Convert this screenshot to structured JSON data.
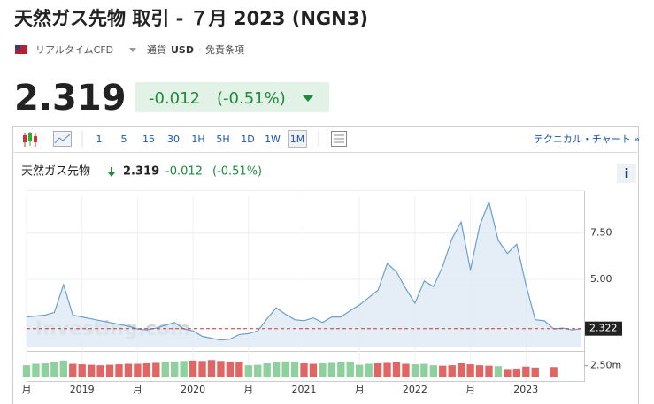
{
  "header": {
    "title": "天然ガス先物 取引 - ７月 2023 (NGN3)",
    "source": "リアルタイムCFD",
    "currency_label": "通貨",
    "currency": "USD",
    "disclaimer": "免責条項",
    "price": "2.319",
    "change": "-0.012",
    "change_pct": "(-0.51%)"
  },
  "toolbar": {
    "intervals": [
      "1",
      "5",
      "15",
      "30",
      "1H",
      "5H",
      "1D",
      "1W",
      "1M"
    ],
    "link": "テクニカル・チャート »"
  },
  "chart_header": {
    "name": "天然ガス先物",
    "price": "2.319",
    "change": "-0.012",
    "change_pct": "(-0.51%)",
    "info": "i"
  },
  "chart_data": {
    "type": "line",
    "watermark": "Investing.com",
    "categories": [
      "月",
      null,
      null,
      null,
      null,
      null,
      "2019",
      null,
      null,
      null,
      null,
      null,
      "月",
      null,
      null,
      null,
      null,
      null,
      "2020",
      null,
      null,
      null,
      null,
      null,
      "月",
      null,
      null,
      null,
      null,
      null,
      "2021",
      null,
      null,
      null,
      null,
      null,
      "月",
      null,
      null,
      null,
      null,
      null,
      "2022",
      null,
      null,
      null,
      null,
      null,
      "月",
      null,
      null,
      null,
      null,
      null,
      "2023",
      null,
      null,
      null,
      null,
      null,
      null
    ],
    "series": [
      {
        "name": "天然ガス先物",
        "color": "#6a9fcf",
        "values": [
          2.95,
          3.0,
          3.05,
          3.2,
          4.7,
          3.05,
          2.95,
          2.85,
          2.75,
          2.65,
          2.55,
          2.45,
          2.3,
          2.25,
          2.35,
          2.5,
          2.65,
          2.3,
          2.2,
          1.9,
          1.8,
          1.7,
          1.75,
          2.0,
          2.05,
          2.2,
          2.85,
          3.45,
          3.1,
          2.8,
          2.75,
          2.9,
          2.65,
          2.95,
          2.95,
          3.3,
          3.6,
          4.0,
          4.4,
          5.85,
          5.4,
          4.5,
          3.7,
          4.9,
          4.6,
          5.7,
          7.2,
          8.1,
          5.5,
          7.9,
          9.2,
          7.1,
          6.4,
          6.9,
          4.7,
          2.8,
          2.75,
          2.3,
          2.35,
          2.25,
          2.32
        ]
      }
    ],
    "last_value": 2.322,
    "last_color": "#c0392b",
    "ylim": [
      1.3,
      9.5
    ],
    "yticks": [
      {
        "value": 5,
        "label": "5.00"
      },
      {
        "value": 7.5,
        "label": "7.50"
      }
    ],
    "grid": true,
    "volume": {
      "up_color": "#8fd19e",
      "down_color": "#e06666",
      "values": [
        2.6,
        2.9,
        3.0,
        3.3,
        3.6,
        2.9,
        2.8,
        2.7,
        2.6,
        2.7,
        2.8,
        2.9,
        2.9,
        3.0,
        3.1,
        3.2,
        3.4,
        3.5,
        3.6,
        3.5,
        3.7,
        3.5,
        3.4,
        3.3,
        2.6,
        2.7,
        3.0,
        3.2,
        3.4,
        3.3,
        3.0,
        2.9,
        3.0,
        3.1,
        3.2,
        3.4,
        2.7,
        2.9,
        3.0,
        3.1,
        3.2,
        2.9,
        2.8,
        2.9,
        2.6,
        2.5,
        2.6,
        3.0,
        2.8,
        2.6,
        2.5,
        2.4,
        1.8,
        1.9,
        2.3,
        2.1,
        null,
        2.2,
        null,
        null,
        null
      ],
      "up": [
        true,
        true,
        true,
        true,
        true,
        false,
        false,
        false,
        false,
        false,
        false,
        false,
        false,
        false,
        false,
        true,
        true,
        true,
        false,
        false,
        false,
        false,
        false,
        false,
        true,
        true,
        true,
        true,
        true,
        true,
        false,
        false,
        true,
        true,
        true,
        true,
        true,
        true,
        false,
        false,
        false,
        false,
        true,
        true,
        true,
        false,
        false,
        false,
        false,
        false,
        false,
        true,
        false,
        false,
        false,
        false,
        null,
        false,
        null,
        null,
        null
      ],
      "ylim": [
        0,
        4.5
      ],
      "yticks": [
        {
          "value": 2.5,
          "label": "2.50m"
        }
      ]
    }
  }
}
